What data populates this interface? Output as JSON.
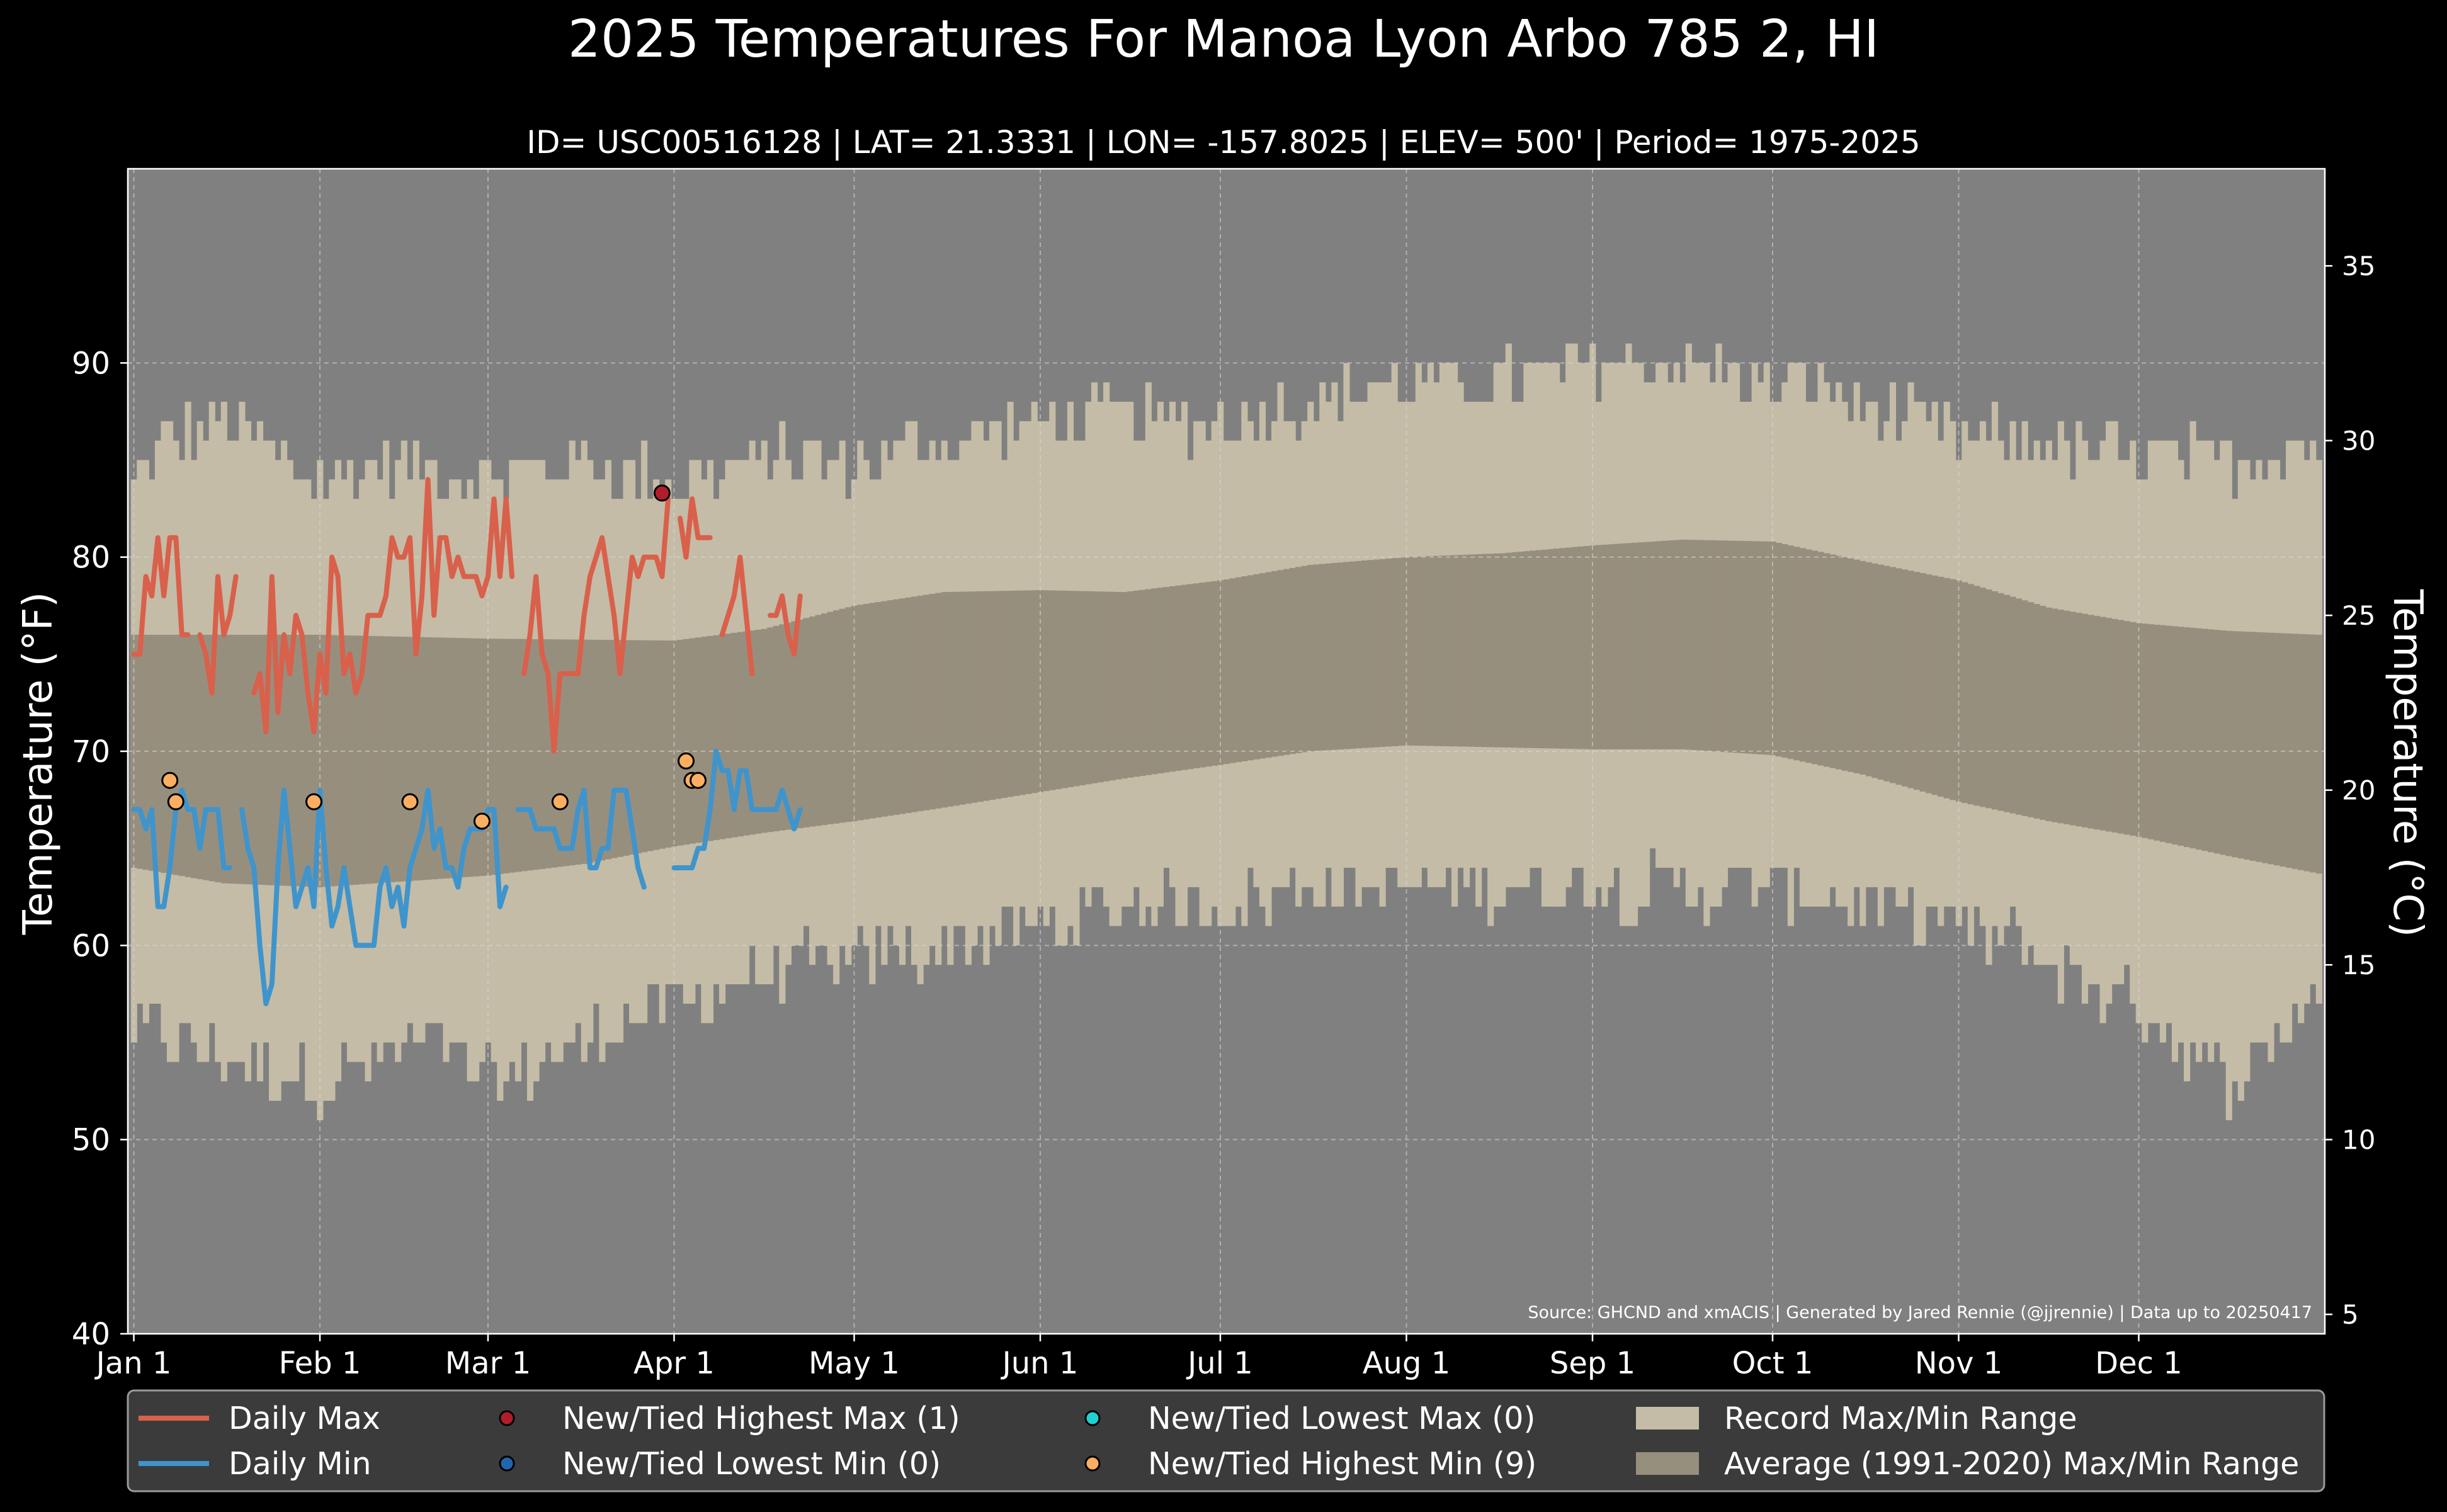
{
  "chart_data": {
    "type": "line",
    "title": "2025 Temperatures For Manoa Lyon Arbo 785 2, HI",
    "subtitle": "ID= USC00516128 | LAT= 21.3331 | LON= -157.8025 | ELEV= 500' | Period= 1975-2025",
    "ylabel": "Temperature ($^\\circ$F)",
    "ylabel_text": "Temperature (°F)",
    "y2label": "Temperature (°C)",
    "source_note": "Source: GHCND and xmACIS | Generated by Jared Rennie (@jjrennie) | Data up to 20250417",
    "ylim": [
      40,
      100
    ],
    "y2lim": [
      4.44,
      37.78
    ],
    "yticks": [
      40,
      50,
      60,
      70,
      80,
      90
    ],
    "y2ticks": [
      5,
      10,
      15,
      20,
      25,
      30,
      35
    ],
    "xlim": [
      -1,
      365
    ],
    "xticks": [
      {
        "day": 0,
        "label": "Jan 1"
      },
      {
        "day": 31,
        "label": "Feb 1"
      },
      {
        "day": 59,
        "label": "Mar 1"
      },
      {
        "day": 90,
        "label": "Apr 1"
      },
      {
        "day": 120,
        "label": "May 1"
      },
      {
        "day": 151,
        "label": "Jun 1"
      },
      {
        "day": 181,
        "label": "Jul 1"
      },
      {
        "day": 212,
        "label": "Aug 1"
      },
      {
        "day": 243,
        "label": "Sep 1"
      },
      {
        "day": 273,
        "label": "Oct 1"
      },
      {
        "day": 304,
        "label": "Nov 1"
      },
      {
        "day": 334,
        "label": "Dec 1"
      }
    ],
    "grid": true,
    "legend_placement": "bottom",
    "colors": {
      "figure_bg": "#000000",
      "plot_bg": "#808080",
      "record_range": "#c4bca6",
      "normal_range": "#978f7e",
      "daily_max": "#d9604b",
      "daily_min": "#3f94cc",
      "new_highest_max": "#b21d2b",
      "new_lowest_min": "#2166ac",
      "new_lowest_max": "#22d0d0",
      "new_highest_min": "#fdae61",
      "legend_bg": "#3b3b3b"
    },
    "series": [
      {
        "name": "Record Max/Min Range",
        "type": "band",
        "anchors_high": [
          [
            0,
            84
          ],
          [
            5,
            86
          ],
          [
            15,
            87
          ],
          [
            30,
            84
          ],
          [
            45,
            85
          ],
          [
            59,
            84
          ],
          [
            75,
            85
          ],
          [
            90,
            84
          ],
          [
            105,
            85
          ],
          [
            120,
            85
          ],
          [
            135,
            86
          ],
          [
            151,
            87
          ],
          [
            165,
            87
          ],
          [
            181,
            87
          ],
          [
            196,
            88
          ],
          [
            212,
            89
          ],
          [
            228,
            89
          ],
          [
            243,
            90
          ],
          [
            258,
            90
          ],
          [
            273,
            89
          ],
          [
            288,
            88
          ],
          [
            304,
            86
          ],
          [
            319,
            86
          ],
          [
            334,
            85
          ],
          [
            349,
            85
          ],
          [
            364,
            86
          ]
        ],
        "anchors_low": [
          [
            0,
            56
          ],
          [
            10,
            55
          ],
          [
            20,
            54
          ],
          [
            31,
            53
          ],
          [
            40,
            54
          ],
          [
            50,
            55
          ],
          [
            59,
            53
          ],
          [
            70,
            54
          ],
          [
            80,
            56
          ],
          [
            90,
            57
          ],
          [
            100,
            58
          ],
          [
            110,
            59
          ],
          [
            120,
            59
          ],
          [
            135,
            60
          ],
          [
            151,
            61
          ],
          [
            165,
            62
          ],
          [
            181,
            62
          ],
          [
            196,
            63
          ],
          [
            212,
            63
          ],
          [
            228,
            63
          ],
          [
            243,
            63
          ],
          [
            258,
            63
          ],
          [
            273,
            63
          ],
          [
            288,
            62
          ],
          [
            304,
            61
          ],
          [
            315,
            60
          ],
          [
            325,
            58
          ],
          [
            334,
            57
          ],
          [
            340,
            55
          ],
          [
            349,
            53
          ],
          [
            357,
            55
          ],
          [
            364,
            58
          ]
        ],
        "noise": 1.6
      },
      {
        "name": "Average (1991-2020) Max/Min Range",
        "type": "band",
        "anchors_high": [
          [
            0,
            76
          ],
          [
            31,
            76
          ],
          [
            59,
            75.8
          ],
          [
            90,
            75.7
          ],
          [
            105,
            76.3
          ],
          [
            120,
            77.5
          ],
          [
            135,
            78.2
          ],
          [
            151,
            78.3
          ],
          [
            165,
            78.2
          ],
          [
            181,
            78.8
          ],
          [
            196,
            79.6
          ],
          [
            212,
            80.0
          ],
          [
            228,
            80.2
          ],
          [
            243,
            80.6
          ],
          [
            258,
            80.9
          ],
          [
            273,
            80.8
          ],
          [
            288,
            79.8
          ],
          [
            304,
            78.8
          ],
          [
            319,
            77.4
          ],
          [
            334,
            76.6
          ],
          [
            349,
            76.2
          ],
          [
            364,
            76.0
          ]
        ],
        "anchors_low": [
          [
            0,
            64
          ],
          [
            15,
            63.2
          ],
          [
            31,
            63.0
          ],
          [
            45,
            63.3
          ],
          [
            59,
            63.6
          ],
          [
            75,
            64.2
          ],
          [
            90,
            65.1
          ],
          [
            105,
            65.8
          ],
          [
            120,
            66.4
          ],
          [
            135,
            67.1
          ],
          [
            151,
            67.9
          ],
          [
            165,
            68.6
          ],
          [
            181,
            69.3
          ],
          [
            196,
            70.0
          ],
          [
            212,
            70.3
          ],
          [
            228,
            70.2
          ],
          [
            243,
            70.1
          ],
          [
            258,
            70.1
          ],
          [
            273,
            69.8
          ],
          [
            288,
            68.8
          ],
          [
            304,
            67.4
          ],
          [
            319,
            66.4
          ],
          [
            334,
            65.6
          ],
          [
            349,
            64.6
          ],
          [
            364,
            63.7
          ]
        ]
      },
      {
        "name": "Daily Max",
        "type": "line",
        "values": [
          75,
          75,
          79,
          78,
          81,
          78,
          81,
          81,
          76,
          76,
          null,
          76,
          75,
          73,
          79,
          76,
          77,
          79,
          null,
          null,
          73,
          74,
          71,
          79,
          72,
          76,
          74,
          77,
          76,
          73,
          71,
          75,
          73,
          80,
          79,
          74,
          75,
          73,
          74,
          77,
          77,
          77,
          78,
          81,
          80,
          80,
          81,
          75,
          78,
          84,
          77,
          81,
          81,
          79,
          80,
          79,
          79,
          79,
          78,
          79,
          83,
          79,
          83,
          79,
          null,
          74,
          76,
          79,
          75,
          74,
          70,
          74,
          74,
          74,
          74,
          77,
          79,
          80,
          81,
          79,
          77,
          74,
          77,
          80,
          79,
          80,
          80,
          80,
          79,
          83,
          null,
          82,
          80,
          83,
          81,
          81,
          81,
          null,
          76,
          77,
          78,
          80,
          77,
          74,
          null,
          null,
          77,
          77,
          78,
          76,
          75,
          78
        ],
        "highlight_markers": {
          "series": "New/Tied Highest Max (1)",
          "days": [
            [
              88,
              83.3
            ]
          ]
        }
      },
      {
        "name": "Daily Min",
        "type": "line",
        "values": [
          67,
          67,
          66,
          67,
          62,
          62,
          64,
          67,
          68,
          67,
          67,
          65,
          67,
          67,
          67,
          64,
          64,
          null,
          67,
          65,
          64,
          60,
          57,
          58,
          64,
          68,
          65,
          62,
          63,
          64,
          62,
          68,
          64,
          61,
          62,
          64,
          62,
          60,
          60,
          60,
          60,
          63,
          64,
          62,
          63,
          61,
          64,
          65,
          66,
          68,
          65,
          66,
          64,
          64,
          63,
          65,
          66,
          66,
          66,
          67,
          67,
          62,
          63,
          null,
          67,
          67,
          67,
          66,
          66,
          66,
          66,
          65,
          65,
          65,
          67,
          68,
          64,
          64,
          65,
          65,
          68,
          68,
          68,
          66,
          64,
          63,
          null,
          63,
          null,
          null,
          64,
          64,
          64,
          64,
          65,
          65,
          67,
          70,
          69,
          69,
          67,
          69,
          69,
          67,
          67,
          67,
          67,
          67,
          68,
          67,
          66,
          67
        ]
      },
      {
        "name": "New/Tied Highest Max (1)",
        "type": "scatter",
        "points": [
          [
            88,
            83.3
          ]
        ]
      },
      {
        "name": "New/Tied Lowest Min (0)",
        "type": "scatter",
        "points": []
      },
      {
        "name": "New/Tied Lowest Max (0)",
        "type": "scatter",
        "points": []
      },
      {
        "name": "New/Tied Highest Min (9)",
        "type": "scatter",
        "points": [
          [
            6,
            68.5
          ],
          [
            7,
            67.4
          ],
          [
            30,
            67.4
          ],
          [
            46,
            67.4
          ],
          [
            58,
            66.4
          ],
          [
            71,
            67.4
          ],
          [
            92,
            69.5
          ],
          [
            93,
            68.5
          ],
          [
            94,
            68.5
          ]
        ]
      }
    ],
    "legend": [
      {
        "label": "Daily Max",
        "kind": "line",
        "color": "#d9604b"
      },
      {
        "label": "Daily Min",
        "kind": "line",
        "color": "#3f94cc"
      },
      {
        "label": "New/Tied Highest Max (1)",
        "kind": "marker",
        "color": "#b21d2b"
      },
      {
        "label": "New/Tied Lowest Min (0)",
        "kind": "marker",
        "color": "#2166ac"
      },
      {
        "label": "New/Tied Lowest Max (0)",
        "kind": "marker",
        "color": "#22d0d0"
      },
      {
        "label": "New/Tied Highest Min (9)",
        "kind": "marker",
        "color": "#fdae61"
      },
      {
        "label": "Record Max/Min Range",
        "kind": "patch",
        "color": "#c4bca6"
      },
      {
        "label": "Average (1991-2020) Max/Min Range",
        "kind": "patch",
        "color": "#978f7e"
      }
    ]
  }
}
